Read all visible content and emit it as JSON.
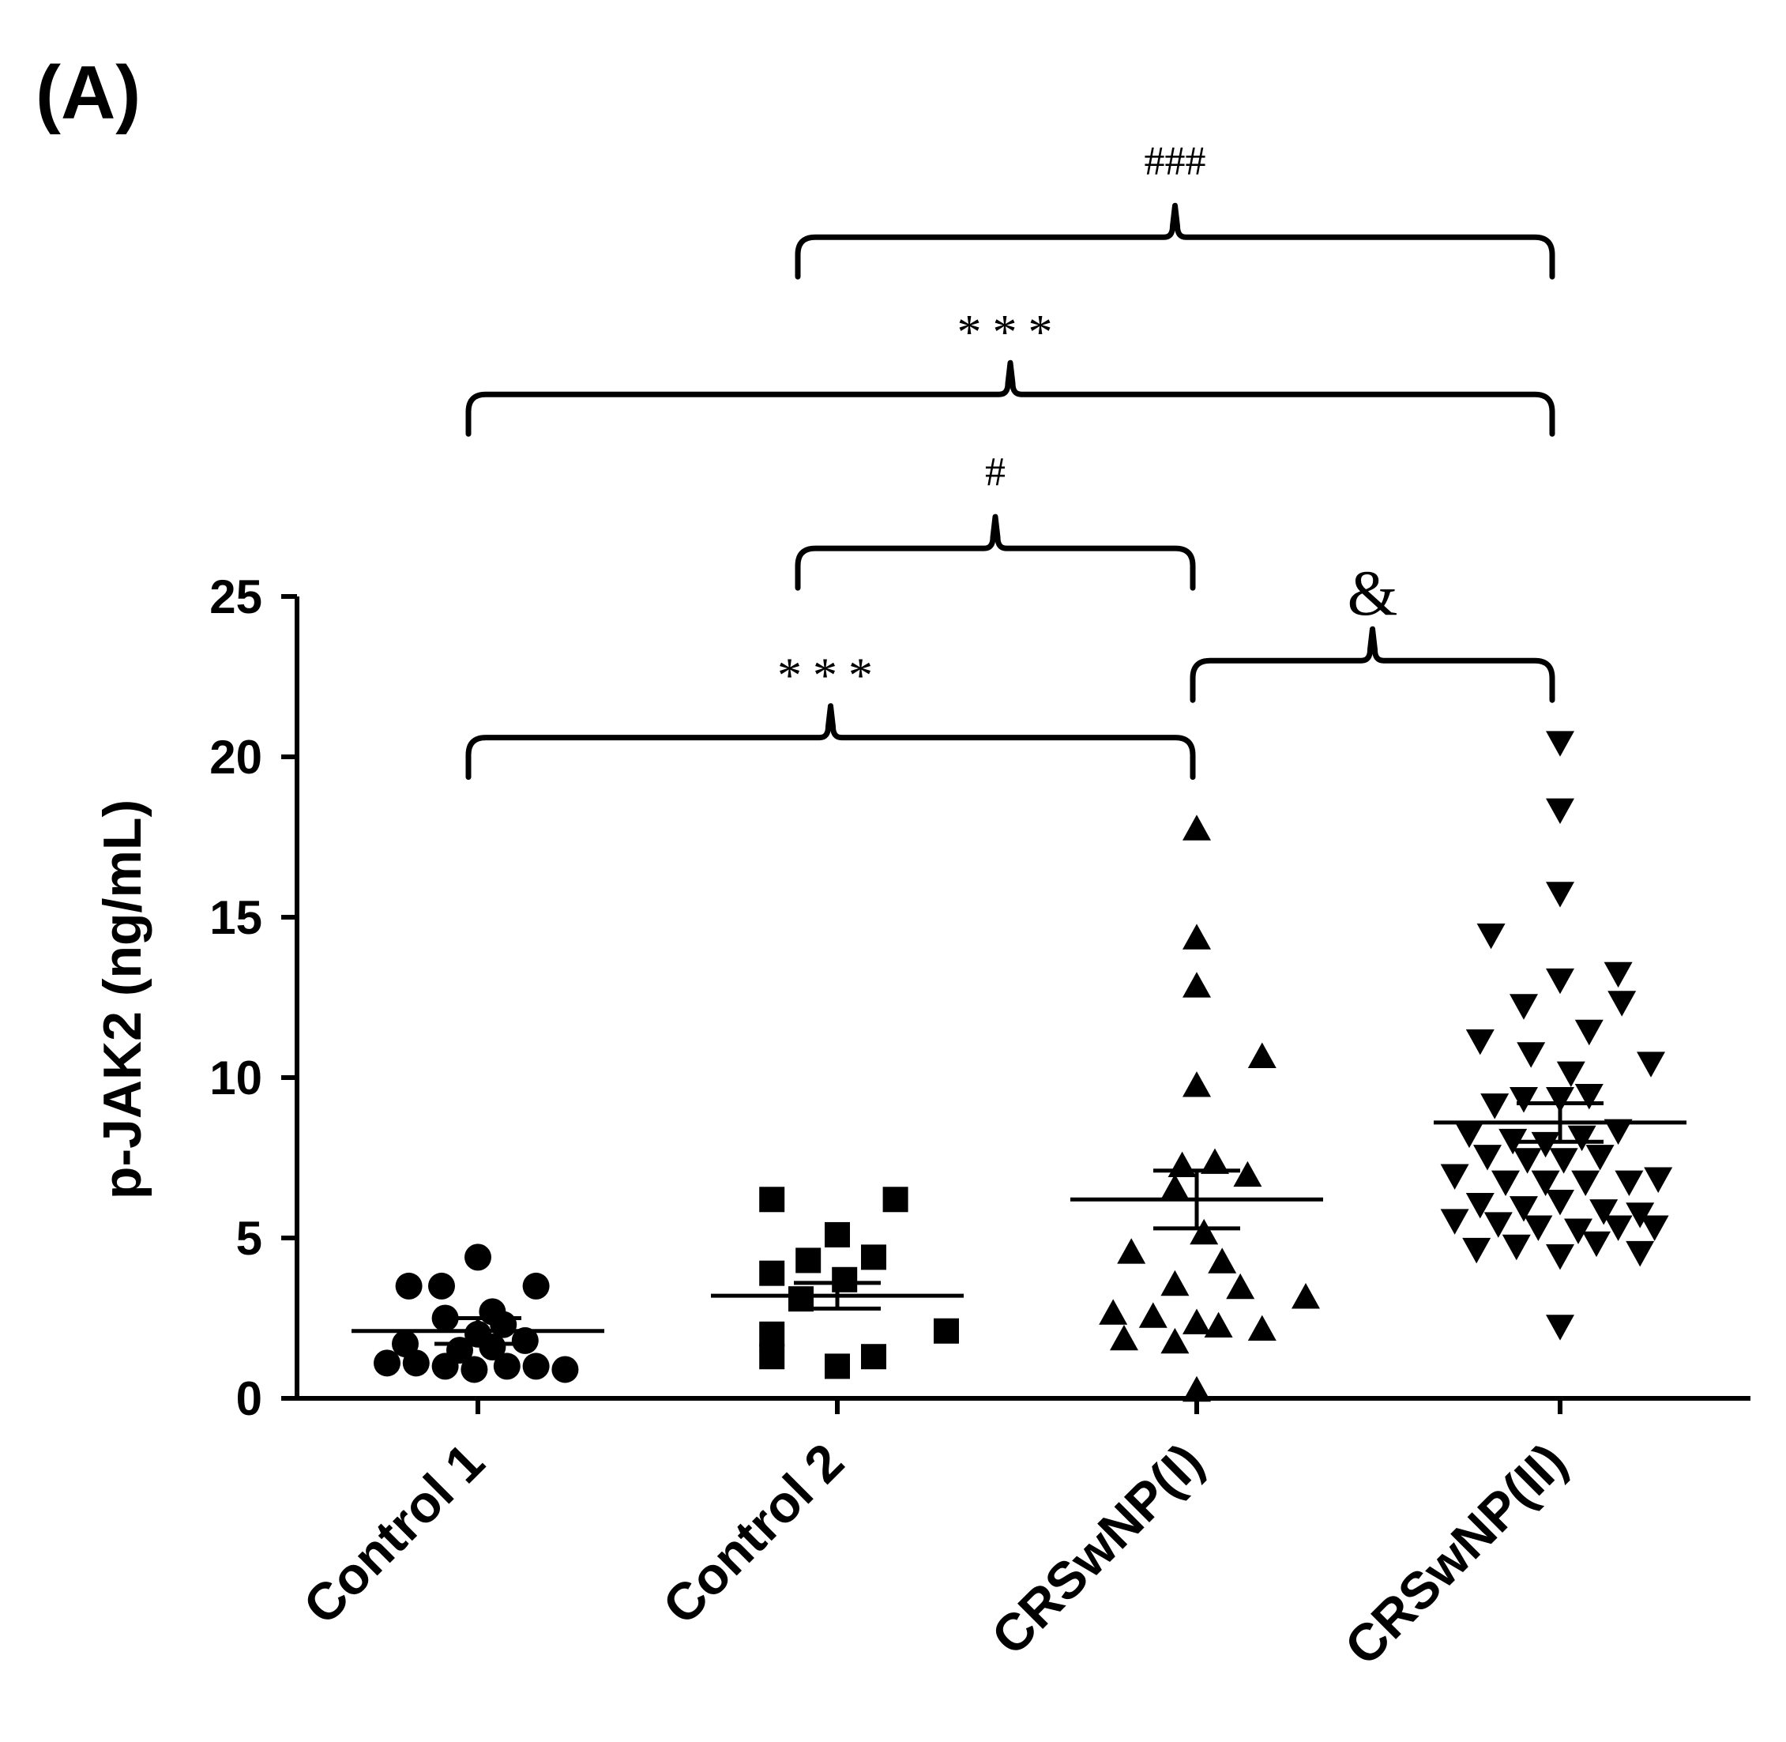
{
  "panel_label": "(A)",
  "chart_data": {
    "type": "scatter",
    "title": "",
    "xlabel": "",
    "ylabel": "p-JAK2 (ng/mL)",
    "ylim": [
      0,
      25
    ],
    "yticks": [
      0,
      5,
      10,
      15,
      20,
      25
    ],
    "categories": [
      "Control 1",
      "Control 2",
      "CRSwNP(I)",
      "CRSwNP(II)"
    ],
    "series": [
      {
        "name": "Control 1",
        "marker": "circle",
        "mean": 2.1,
        "sem_low": 1.7,
        "sem_high": 2.5,
        "points": [
          {
            "dx": -0.25,
            "y": 1.1
          },
          {
            "dx": -0.17,
            "y": 1.1
          },
          {
            "dx": -0.09,
            "y": 1.0
          },
          {
            "dx": -0.01,
            "y": 0.9
          },
          {
            "dx": 0.08,
            "y": 1.0
          },
          {
            "dx": 0.16,
            "y": 1.0
          },
          {
            "dx": 0.24,
            "y": 0.9
          },
          {
            "dx": -0.2,
            "y": 1.7
          },
          {
            "dx": -0.05,
            "y": 1.5
          },
          {
            "dx": 0.04,
            "y": 1.6
          },
          {
            "dx": 0.13,
            "y": 1.8
          },
          {
            "dx": 0.0,
            "y": 2.0
          },
          {
            "dx": 0.07,
            "y": 2.3
          },
          {
            "dx": -0.09,
            "y": 2.5
          },
          {
            "dx": 0.04,
            "y": 2.7
          },
          {
            "dx": -0.19,
            "y": 3.5
          },
          {
            "dx": -0.1,
            "y": 3.5
          },
          {
            "dx": 0.16,
            "y": 3.5
          },
          {
            "dx": 0.0,
            "y": 4.4
          }
        ]
      },
      {
        "name": "Control 2",
        "marker": "square",
        "mean": 3.2,
        "sem_low": 2.8,
        "sem_high": 3.6,
        "points": [
          {
            "dx": -0.18,
            "y": 6.2
          },
          {
            "dx": 0.16,
            "y": 6.2
          },
          {
            "dx": 0.0,
            "y": 5.1
          },
          {
            "dx": -0.08,
            "y": 4.3
          },
          {
            "dx": 0.1,
            "y": 4.4
          },
          {
            "dx": -0.18,
            "y": 3.9
          },
          {
            "dx": 0.02,
            "y": 3.7
          },
          {
            "dx": -0.1,
            "y": 3.1
          },
          {
            "dx": -0.18,
            "y": 2.0
          },
          {
            "dx": 0.3,
            "y": 2.1
          },
          {
            "dx": -0.18,
            "y": 1.3
          },
          {
            "dx": 0.1,
            "y": 1.3
          },
          {
            "dx": 0.0,
            "y": 1.0
          }
        ]
      },
      {
        "name": "CRSwNP(I)",
        "marker": "triangle-up",
        "mean": 6.2,
        "sem_low": 5.3,
        "sem_high": 7.1,
        "points": [
          {
            "dx": 0.0,
            "y": 17.7
          },
          {
            "dx": 0.0,
            "y": 14.3
          },
          {
            "dx": 0.0,
            "y": 12.8
          },
          {
            "dx": 0.18,
            "y": 10.6
          },
          {
            "dx": 0.0,
            "y": 9.7
          },
          {
            "dx": -0.04,
            "y": 7.2
          },
          {
            "dx": 0.05,
            "y": 7.3
          },
          {
            "dx": 0.14,
            "y": 6.9
          },
          {
            "dx": -0.06,
            "y": 6.5
          },
          {
            "dx": 0.02,
            "y": 5.1
          },
          {
            "dx": -0.18,
            "y": 4.5
          },
          {
            "dx": 0.07,
            "y": 4.2
          },
          {
            "dx": -0.06,
            "y": 3.5
          },
          {
            "dx": 0.12,
            "y": 3.4
          },
          {
            "dx": 0.3,
            "y": 3.1
          },
          {
            "dx": -0.23,
            "y": 2.6
          },
          {
            "dx": -0.12,
            "y": 2.5
          },
          {
            "dx": 0.0,
            "y": 2.3
          },
          {
            "dx": 0.06,
            "y": 2.2
          },
          {
            "dx": 0.18,
            "y": 2.1
          },
          {
            "dx": -0.2,
            "y": 1.8
          },
          {
            "dx": -0.06,
            "y": 1.7
          },
          {
            "dx": 0.0,
            "y": 0.2
          }
        ]
      },
      {
        "name": "CRSwNP(II)",
        "marker": "triangle-down",
        "mean": 8.6,
        "sem_low": 8.0,
        "sem_high": 9.2,
        "points": [
          {
            "dx": 0.0,
            "y": 20.5
          },
          {
            "dx": 0.0,
            "y": 18.4
          },
          {
            "dx": 0.0,
            "y": 15.8
          },
          {
            "dx": -0.19,
            "y": 14.5
          },
          {
            "dx": 0.16,
            "y": 13.3
          },
          {
            "dx": 0.0,
            "y": 13.1
          },
          {
            "dx": -0.1,
            "y": 12.3
          },
          {
            "dx": 0.17,
            "y": 12.4
          },
          {
            "dx": 0.08,
            "y": 11.5
          },
          {
            "dx": -0.22,
            "y": 11.2
          },
          {
            "dx": -0.08,
            "y": 10.8
          },
          {
            "dx": 0.03,
            "y": 10.2
          },
          {
            "dx": 0.25,
            "y": 10.5
          },
          {
            "dx": -0.18,
            "y": 9.2
          },
          {
            "dx": -0.1,
            "y": 9.4
          },
          {
            "dx": 0.0,
            "y": 9.4
          },
          {
            "dx": 0.08,
            "y": 9.5
          },
          {
            "dx": -0.25,
            "y": 8.3
          },
          {
            "dx": -0.13,
            "y": 8.1
          },
          {
            "dx": -0.04,
            "y": 8.0
          },
          {
            "dx": 0.06,
            "y": 8.2
          },
          {
            "dx": 0.16,
            "y": 8.4
          },
          {
            "dx": -0.2,
            "y": 7.6
          },
          {
            "dx": -0.09,
            "y": 7.5
          },
          {
            "dx": 0.01,
            "y": 7.5
          },
          {
            "dx": 0.11,
            "y": 7.6
          },
          {
            "dx": -0.29,
            "y": 7.0
          },
          {
            "dx": -0.15,
            "y": 6.8
          },
          {
            "dx": -0.04,
            "y": 6.8
          },
          {
            "dx": 0.07,
            "y": 6.8
          },
          {
            "dx": 0.19,
            "y": 6.8
          },
          {
            "dx": 0.27,
            "y": 6.9
          },
          {
            "dx": -0.22,
            "y": 6.1
          },
          {
            "dx": -0.1,
            "y": 6.0
          },
          {
            "dx": 0.0,
            "y": 6.2
          },
          {
            "dx": 0.12,
            "y": 5.9
          },
          {
            "dx": 0.22,
            "y": 5.8
          },
          {
            "dx": -0.29,
            "y": 5.6
          },
          {
            "dx": -0.17,
            "y": 5.5
          },
          {
            "dx": -0.06,
            "y": 5.4
          },
          {
            "dx": 0.05,
            "y": 5.3
          },
          {
            "dx": 0.16,
            "y": 5.4
          },
          {
            "dx": 0.26,
            "y": 5.4
          },
          {
            "dx": -0.23,
            "y": 4.7
          },
          {
            "dx": -0.12,
            "y": 4.8
          },
          {
            "dx": 0.0,
            "y": 4.5
          },
          {
            "dx": 0.1,
            "y": 4.9
          },
          {
            "dx": 0.22,
            "y": 4.6
          },
          {
            "dx": 0.0,
            "y": 2.3
          }
        ]
      }
    ],
    "annotations": [
      {
        "label": "***",
        "from": 0,
        "to": 2,
        "y": 20.6
      },
      {
        "label": "&",
        "from": 2,
        "to": 3,
        "y": 23.0
      },
      {
        "label": "#",
        "from": 1,
        "to": 2,
        "y": 26.5
      },
      {
        "label": "***",
        "from": 0,
        "to": 3,
        "y": 31.3
      },
      {
        "label": "###",
        "from": 1,
        "to": 3,
        "y": 36.2
      }
    ]
  }
}
